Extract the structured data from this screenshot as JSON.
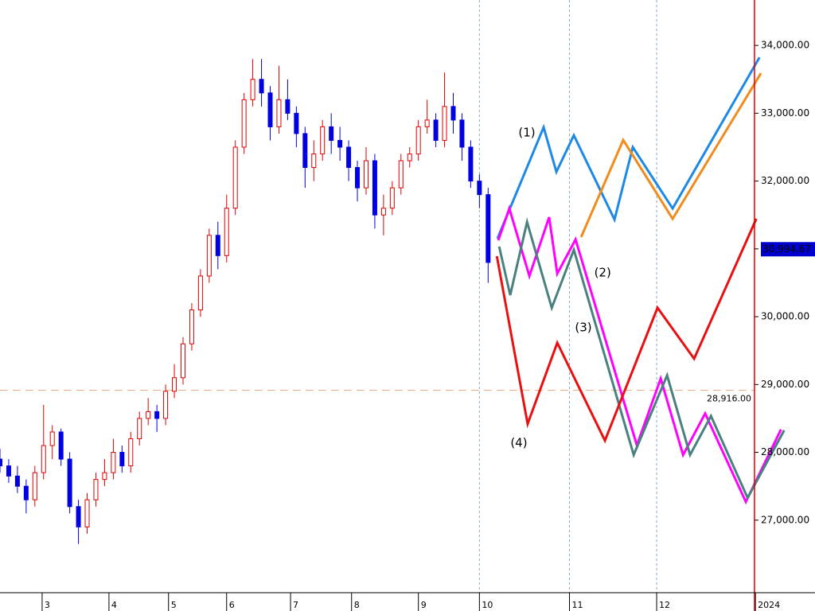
{
  "chart_data": {
    "type": "candlestick",
    "xlim": [
      0,
      280.5
    ],
    "ylim": [
      25930,
      34670
    ],
    "xticks": [
      {
        "value": 14.5,
        "label": "3"
      },
      {
        "value": 37.5,
        "label": "4"
      },
      {
        "value": 58,
        "label": "5"
      },
      {
        "value": 78,
        "label": "6"
      },
      {
        "value": 100,
        "label": "7"
      },
      {
        "value": 121,
        "label": "8"
      },
      {
        "value": 144,
        "label": "9"
      },
      {
        "value": 165,
        "label": "10"
      },
      {
        "value": 196,
        "label": "11"
      },
      {
        "value": 226,
        "label": "12"
      },
      {
        "value": 260,
        "label": "2024"
      }
    ],
    "yticks": [
      {
        "value": 27000,
        "label": "27,000.00"
      },
      {
        "value": 28000,
        "label": "28,000.00"
      },
      {
        "value": 29000,
        "label": "29,000.00"
      },
      {
        "value": 30000,
        "label": "30,000.00"
      },
      {
        "value": 31000,
        "label": "31,000.00"
      },
      {
        "value": 32000,
        "label": "32,000.00"
      },
      {
        "value": 33000,
        "label": "33,000.00"
      },
      {
        "value": 34000,
        "label": "34,000.00"
      }
    ],
    "x": [
      0,
      3,
      6,
      9,
      12,
      15,
      18,
      21,
      24,
      27,
      30,
      33,
      36,
      39,
      42,
      45,
      48,
      51,
      54,
      57,
      60,
      63,
      66,
      69,
      72,
      75,
      78,
      81,
      84,
      87,
      90,
      93,
      96,
      99,
      102,
      105,
      108,
      111,
      114,
      117,
      120,
      123,
      126,
      129,
      132,
      135,
      138,
      141,
      144,
      147,
      150,
      153,
      156,
      159,
      162,
      165,
      168
    ],
    "ohlc": [
      [
        27900,
        28050,
        27700,
        27800
      ],
      [
        27800,
        27900,
        27550,
        27650
      ],
      [
        27650,
        27800,
        27400,
        27500
      ],
      [
        27500,
        27600,
        27100,
        27300
      ],
      [
        27300,
        27800,
        27200,
        27700
      ],
      [
        27700,
        28700,
        27600,
        28100
      ],
      [
        28100,
        28400,
        27900,
        28300
      ],
      [
        28300,
        28350,
        27800,
        27900
      ],
      [
        27900,
        28000,
        27100,
        27200
      ],
      [
        27200,
        27300,
        26650,
        26900
      ],
      [
        26900,
        27400,
        26800,
        27300
      ],
      [
        27300,
        27700,
        27200,
        27600
      ],
      [
        27600,
        27900,
        27500,
        27700
      ],
      [
        27700,
        28200,
        27600,
        28000
      ],
      [
        28000,
        28100,
        27700,
        27800
      ],
      [
        27800,
        28300,
        27700,
        28200
      ],
      [
        28200,
        28600,
        28100,
        28500
      ],
      [
        28500,
        28800,
        28400,
        28600
      ],
      [
        28600,
        28700,
        28300,
        28500
      ],
      [
        28500,
        29000,
        28400,
        28900
      ],
      [
        28900,
        29300,
        28800,
        29100
      ],
      [
        29100,
        29700,
        29000,
        29600
      ],
      [
        29600,
        30200,
        29500,
        30100
      ],
      [
        30100,
        30700,
        30000,
        30600
      ],
      [
        30600,
        31300,
        30500,
        31200
      ],
      [
        31200,
        31400,
        30700,
        30900
      ],
      [
        30900,
        31800,
        30800,
        31600
      ],
      [
        31600,
        32600,
        31500,
        32500
      ],
      [
        32500,
        33300,
        32400,
        33200
      ],
      [
        33200,
        33800,
        33100,
        33500
      ],
      [
        33500,
        33800,
        33100,
        33300
      ],
      [
        33300,
        33400,
        32600,
        32800
      ],
      [
        32800,
        33700,
        32700,
        33200
      ],
      [
        33200,
        33500,
        32900,
        33000
      ],
      [
        33000,
        33100,
        32500,
        32700
      ],
      [
        32700,
        32800,
        31900,
        32200
      ],
      [
        32200,
        32600,
        32000,
        32400
      ],
      [
        32400,
        32900,
        32300,
        32800
      ],
      [
        32800,
        33000,
        32400,
        32600
      ],
      [
        32600,
        32800,
        32300,
        32500
      ],
      [
        32500,
        32600,
        32000,
        32200
      ],
      [
        32200,
        32300,
        31700,
        31900
      ],
      [
        31900,
        32500,
        31800,
        32300
      ],
      [
        32300,
        32400,
        31300,
        31500
      ],
      [
        31500,
        31800,
        31200,
        31600
      ],
      [
        31600,
        32000,
        31500,
        31900
      ],
      [
        31900,
        32400,
        31800,
        32300
      ],
      [
        32300,
        32500,
        32200,
        32400
      ],
      [
        32400,
        32900,
        32300,
        32800
      ],
      [
        32800,
        33200,
        32700,
        32900
      ],
      [
        32900,
        33000,
        32500,
        32600
      ],
      [
        32600,
        33600,
        32500,
        33100
      ],
      [
        33100,
        33300,
        32700,
        32900
      ],
      [
        32900,
        33000,
        32300,
        32500
      ],
      [
        32500,
        32600,
        31900,
        32000
      ],
      [
        32000,
        32100,
        31600,
        31800
      ],
      [
        31800,
        31900,
        30500,
        30800
      ]
    ],
    "up_color": "#e00000",
    "down_color": "#0000e0",
    "series": [
      {
        "name": "(1)",
        "color": "#1e88e5",
        "x": [
          171.2,
          187.1,
          191.5,
          197.5,
          211.5,
          217.8,
          231.5,
          261.4
        ],
        "values": [
          31151,
          32792,
          32136,
          32675,
          31432,
          32499,
          31596,
          33824
        ]
      },
      {
        "name": "(2)",
        "color": "#ff00ff",
        "x": [
          171.5,
          175.3,
          182.2,
          189.0,
          191.8,
          198.1,
          219.2,
          227.4,
          235.1,
          242.7,
          256.7,
          268.8
        ],
        "values": [
          31127,
          31596,
          30600,
          31467,
          30635,
          31139,
          28103,
          29088,
          27962,
          28572,
          27270,
          28337
        ]
      },
      {
        "name": "(3)",
        "color": "#4a8080",
        "x": [
          171.8,
          175.6,
          181.4,
          189.9,
          197.5,
          218.1,
          229.6,
          237.5,
          244.7,
          257.3,
          269.9
        ],
        "values": [
          31034,
          30318,
          31397,
          30131,
          30987,
          27962,
          29135,
          27962,
          28536,
          27329,
          28325
        ]
      },
      {
        "name": "(4)",
        "color": "#e81010",
        "x": [
          171,
          181.6,
          191.8,
          208.2,
          226.3,
          238.9,
          260.3
        ],
        "values": [
          30893,
          28419,
          29615,
          28173,
          30131,
          29380,
          31444
        ]
      },
      {
        "color": "#f08c1e",
        "x": [
          200,
          214.5,
          231.5,
          261.9
        ],
        "values": [
          31174,
          32605,
          31444,
          33590
        ]
      }
    ],
    "reference_line": {
      "value": 28916,
      "label": "28,916.00",
      "color": "#f4b183"
    },
    "last_price": {
      "value": 30994.67,
      "label": "30,994.67",
      "color": "#0000cc"
    }
  }
}
